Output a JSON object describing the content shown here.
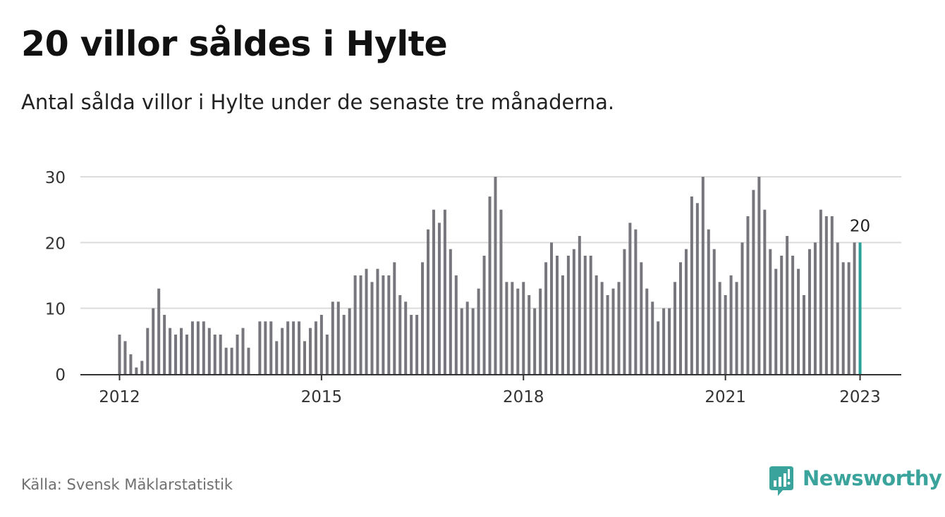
{
  "title": "20 villor såldes i Hylte",
  "subtitle": "Antal sålda villor i Hylte under de senaste tre månaderna.",
  "source": "Källa: Svensk Mäklarstatistik",
  "brand": "Newsworthy",
  "colors": {
    "bar": "#76767c",
    "highlight": "#2aa198",
    "grid": "#dcdcdc",
    "axis": "#333333",
    "brand": "#3aa39c"
  },
  "chart_data": {
    "type": "bar",
    "title": "20 villor såldes i Hylte",
    "subtitle": "Antal sålda villor i Hylte under de senaste tre månaderna.",
    "xlabel": "",
    "ylabel": "",
    "ylim": [
      0,
      30
    ],
    "yticks": [
      0,
      10,
      20,
      30
    ],
    "x_ticks": [
      "2012",
      "2015",
      "2018",
      "2021",
      "2023"
    ],
    "x_start": "2012-01",
    "grid": true,
    "annotation": {
      "label": "20",
      "index": 132
    },
    "values": [
      6,
      5,
      3,
      1,
      2,
      7,
      10,
      13,
      9,
      7,
      6,
      7,
      6,
      8,
      8,
      8,
      7,
      6,
      6,
      4,
      4,
      6,
      7,
      4,
      null,
      8,
      8,
      8,
      5,
      7,
      8,
      8,
      8,
      5,
      7,
      8,
      9,
      6,
      11,
      11,
      9,
      10,
      15,
      15,
      16,
      14,
      16,
      15,
      15,
      17,
      12,
      11,
      9,
      9,
      17,
      22,
      25,
      23,
      25,
      19,
      15,
      10,
      11,
      10,
      13,
      18,
      27,
      30,
      25,
      14,
      14,
      13,
      14,
      12,
      10,
      13,
      17,
      20,
      18,
      15,
      18,
      19,
      21,
      18,
      18,
      15,
      14,
      12,
      13,
      14,
      19,
      23,
      22,
      17,
      13,
      11,
      8,
      10,
      10,
      14,
      17,
      19,
      27,
      26,
      30,
      22,
      19,
      14,
      12,
      15,
      14,
      20,
      24,
      28,
      30,
      25,
      19,
      16,
      18,
      21,
      18,
      16,
      12,
      19,
      20,
      25,
      24,
      24,
      20,
      17,
      17,
      20,
      20
    ]
  }
}
